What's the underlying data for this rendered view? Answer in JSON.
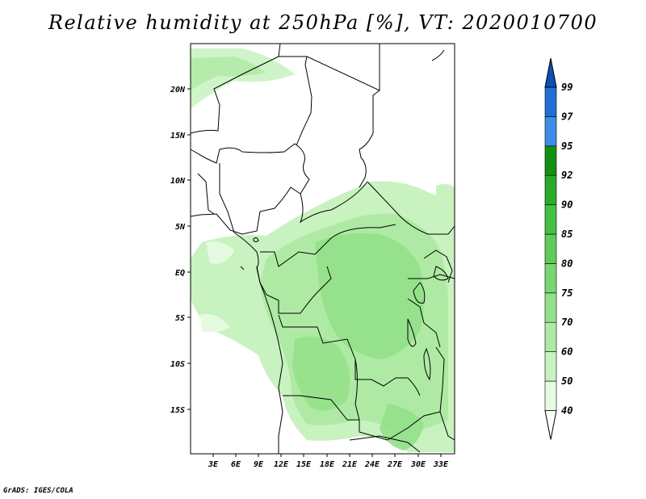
{
  "title": "Relative humidity at 250hPa [%], VT: 2020010700",
  "credit": "GrADS: IGES/COLA",
  "map": {
    "lon_labels": [
      "3E",
      "6E",
      "9E",
      "12E",
      "15E",
      "18E",
      "21E",
      "24E",
      "27E",
      "30E",
      "33E"
    ],
    "lat_labels": [
      "20N",
      "15N",
      "10N",
      "5N",
      "EQ",
      "5S",
      "10S",
      "15S"
    ],
    "land_color": "#ffffff",
    "border_color": "#000000"
  },
  "colorbar": {
    "levels": [
      "40",
      "50",
      "60",
      "70",
      "75",
      "80",
      "85",
      "90",
      "92",
      "95",
      "97",
      "99"
    ],
    "colors": [
      "#e6fae0",
      "#c8f2c0",
      "#aeeaa4",
      "#94e08a",
      "#7ad672",
      "#5fcc5a",
      "#44c044",
      "#2aaa2a",
      "#139013",
      "#3c8ee6",
      "#206fd6",
      "#0b4fb8",
      "#0a3a94"
    ]
  }
}
